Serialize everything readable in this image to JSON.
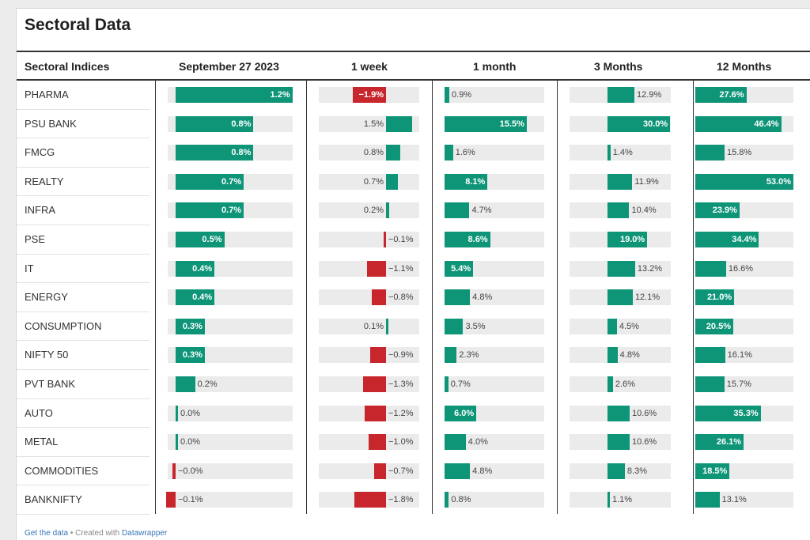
{
  "title": "Sectoral Data",
  "colors": {
    "positive": "#0e9578",
    "negative": "#c7262c",
    "track": "#ebebeb"
  },
  "columns": [
    "Sectoral Indices",
    "September 27 2023",
    "1 week",
    "1 month",
    "3 Months",
    "12 Months"
  ],
  "footer": {
    "get_data": "Get the data",
    "separator": " • Created with ",
    "tool": "Datawrapper"
  },
  "chart_data": {
    "type": "table",
    "title": "Sectoral Data",
    "columns": [
      "September 27 2023",
      "1 week",
      "1 month",
      "3 Months",
      "12 Months"
    ],
    "unit": "%",
    "rows": [
      {
        "name": "PHARMA",
        "labels": [
          "1.2%",
          "−1.9%",
          "0.9%",
          "12.9%",
          "27.6%"
        ],
        "values": [
          1.2,
          -1.9,
          0.9,
          12.9,
          27.6
        ]
      },
      {
        "name": "PSU BANK",
        "labels": [
          "0.8%",
          "1.5%",
          "15.5%",
          "30.0%",
          "46.4%"
        ],
        "values": [
          0.8,
          1.5,
          15.5,
          30.0,
          46.4
        ]
      },
      {
        "name": "FMCG",
        "labels": [
          "0.8%",
          "0.8%",
          "1.6%",
          "1.4%",
          "15.8%"
        ],
        "values": [
          0.8,
          0.8,
          1.6,
          1.4,
          15.8
        ]
      },
      {
        "name": "REALTY",
        "labels": [
          "0.7%",
          "0.7%",
          "8.1%",
          "11.9%",
          "53.0%"
        ],
        "values": [
          0.7,
          0.7,
          8.1,
          11.9,
          53.0
        ]
      },
      {
        "name": "INFRA",
        "labels": [
          "0.7%",
          "0.2%",
          "4.7%",
          "10.4%",
          "23.9%"
        ],
        "values": [
          0.7,
          0.2,
          4.7,
          10.4,
          23.9
        ]
      },
      {
        "name": "PSE",
        "labels": [
          "0.5%",
          "−0.1%",
          "8.6%",
          "19.0%",
          "34.4%"
        ],
        "values": [
          0.5,
          -0.1,
          8.6,
          19.0,
          34.4
        ]
      },
      {
        "name": "IT",
        "labels": [
          "0.4%",
          "−1.1%",
          "5.4%",
          "13.2%",
          "16.6%"
        ],
        "values": [
          0.4,
          -1.1,
          5.4,
          13.2,
          16.6
        ]
      },
      {
        "name": "ENERGY",
        "labels": [
          "0.4%",
          "−0.8%",
          "4.8%",
          "12.1%",
          "21.0%"
        ],
        "values": [
          0.4,
          -0.8,
          4.8,
          12.1,
          21.0
        ]
      },
      {
        "name": "CONSUMPTION",
        "labels": [
          "0.3%",
          "0.1%",
          "3.5%",
          "4.5%",
          "20.5%"
        ],
        "values": [
          0.3,
          0.1,
          3.5,
          4.5,
          20.5
        ]
      },
      {
        "name": "NIFTY 50",
        "labels": [
          "0.3%",
          "−0.9%",
          "2.3%",
          "4.8%",
          "16.1%"
        ],
        "values": [
          0.3,
          -0.9,
          2.3,
          4.8,
          16.1
        ]
      },
      {
        "name": "PVT BANK",
        "labels": [
          "0.2%",
          "−1.3%",
          "0.7%",
          "2.6%",
          "15.7%"
        ],
        "values": [
          0.2,
          -1.3,
          0.7,
          2.6,
          15.7
        ]
      },
      {
        "name": "AUTO",
        "labels": [
          "0.0%",
          "−1.2%",
          "6.0%",
          "10.6%",
          "35.3%"
        ],
        "values": [
          0.02,
          -1.2,
          6.0,
          10.6,
          35.3
        ]
      },
      {
        "name": "METAL",
        "labels": [
          "0.0%",
          "−1.0%",
          "4.0%",
          "10.6%",
          "26.1%"
        ],
        "values": [
          0.02,
          -1.0,
          4.0,
          10.6,
          26.1
        ]
      },
      {
        "name": "COMMODITIES",
        "labels": [
          "−0.0%",
          "−0.7%",
          "4.8%",
          "8.3%",
          "18.5%"
        ],
        "values": [
          -0.03,
          -0.7,
          4.8,
          8.3,
          18.5
        ]
      },
      {
        "name": "BANKNIFTY",
        "labels": [
          "−0.1%",
          "−1.8%",
          "0.8%",
          "1.1%",
          "13.1%"
        ],
        "values": [
          -0.1,
          -1.8,
          0.8,
          1.1,
          13.1
        ]
      }
    ]
  }
}
